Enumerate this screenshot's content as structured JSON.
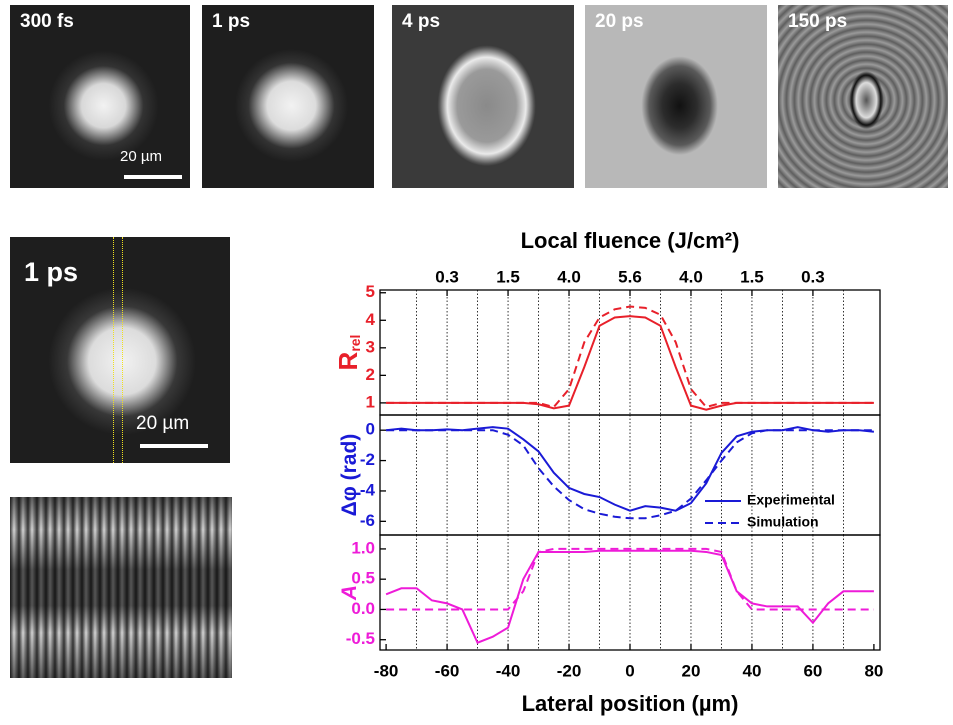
{
  "images": [
    {
      "label": "300 fs"
    },
    {
      "label": "1 ps"
    },
    {
      "label": "4 ps"
    },
    {
      "label": "20 ps"
    },
    {
      "label": "150 ps"
    }
  ],
  "scale_bar": "20 µm",
  "zoom_image": {
    "label": "1 ps",
    "scale_bar": "20 µm"
  },
  "chart_data": {
    "type": "line",
    "x2label": "Local fluence (J/cm²)",
    "x2ticks": [
      {
        "value": -60,
        "label": "0.3"
      },
      {
        "value": -40,
        "label": "1.5"
      },
      {
        "value": -20,
        "label": "4.0"
      },
      {
        "value": 0,
        "label": "5.6"
      },
      {
        "value": 20,
        "label": "4.0"
      },
      {
        "value": 40,
        "label": "1.5"
      },
      {
        "value": 60,
        "label": "0.3"
      }
    ],
    "xlabel": "Lateral position (µm)",
    "xlim": [
      -82,
      82
    ],
    "xticks": [
      -80,
      -60,
      -40,
      -20,
      0,
      20,
      40,
      60,
      80
    ],
    "xminorticks": [
      -70,
      -60,
      -50,
      -40,
      -30,
      -20,
      -10,
      0,
      10,
      20,
      30,
      40,
      50,
      60,
      70
    ],
    "x": [
      -80,
      -75,
      -70,
      -65,
      -60,
      -55,
      -50,
      -45,
      -40,
      -35,
      -30,
      -25,
      -20,
      -15,
      -10,
      -5,
      0,
      5,
      10,
      15,
      20,
      25,
      30,
      35,
      40,
      45,
      50,
      55,
      60,
      65,
      70,
      75,
      80
    ],
    "panels": [
      {
        "ylabel": "R",
        "ylabel_sub": "rel",
        "color": "#e8202a",
        "ylim": [
          0.56,
          5.1
        ],
        "yticks": [
          1,
          2,
          3,
          4,
          5
        ],
        "series": [
          {
            "style": "solid",
            "color": "#e8202a",
            "values": [
              1,
              1,
              1,
              1,
              1,
              1,
              1,
              1,
              1,
              1,
              0.95,
              0.8,
              0.9,
              2.3,
              3.8,
              4.1,
              4.15,
              4.1,
              3.8,
              2.3,
              0.9,
              0.75,
              0.9,
              1,
              1,
              1,
              1,
              1,
              1,
              1,
              1,
              1,
              1
            ]
          },
          {
            "style": "dashed",
            "color": "#e8202a",
            "values": [
              1,
              1,
              1,
              1,
              1,
              1,
              1,
              1,
              1,
              1,
              1.0,
              0.85,
              1.5,
              3.2,
              4.1,
              4.4,
              4.5,
              4.45,
              4.2,
              3.2,
              1.5,
              0.85,
              1.0,
              1,
              1,
              1,
              1,
              1,
              1,
              1,
              1,
              1,
              1
            ]
          }
        ]
      },
      {
        "ylabel": "Δφ (rad)",
        "color": "#1a1ad6",
        "ylim": [
          -6.9,
          1.0
        ],
        "yticks": [
          0,
          -2,
          -4,
          -6
        ],
        "legend": "lower right",
        "series": [
          {
            "name": "Experimental",
            "style": "solid",
            "color": "#1a1ad6",
            "values": [
              0,
              0.1,
              0,
              0,
              0.05,
              0,
              0.1,
              0.2,
              0.1,
              -0.6,
              -1.4,
              -2.8,
              -3.8,
              -4.2,
              -4.4,
              -4.9,
              -5.3,
              -5.0,
              -5.1,
              -5.3,
              -4.8,
              -3.5,
              -1.5,
              -0.4,
              -0.1,
              0,
              0,
              0.2,
              0,
              -0.1,
              0,
              0,
              -0.1
            ]
          },
          {
            "name": "Simulation",
            "style": "dashed",
            "color": "#1a1ad6",
            "values": [
              0,
              0,
              0,
              0,
              0,
              0,
              0,
              0,
              -0.3,
              -1.0,
              -2.5,
              -3.7,
              -4.6,
              -5.2,
              -5.5,
              -5.7,
              -5.8,
              -5.8,
              -5.6,
              -5.3,
              -4.5,
              -3.3,
              -2.0,
              -0.8,
              -0.2,
              0,
              0,
              0,
              0,
              0,
              0,
              0,
              0
            ]
          }
        ]
      },
      {
        "ylabel": "A",
        "color": "#ee1bd8",
        "ylim": [
          -0.67,
          1.23
        ],
        "yticks": [
          1.0,
          0.5,
          0.0,
          -0.5
        ],
        "ytick_labels": [
          "1.0",
          "0.5",
          "0.0",
          "-0.5"
        ],
        "series": [
          {
            "style": "solid",
            "color": "#ee1bd8",
            "values": [
              0.25,
              0.35,
              0.35,
              0.15,
              0.1,
              0.0,
              -0.55,
              -0.45,
              -0.3,
              0.5,
              0.95,
              0.95,
              0.95,
              0.95,
              0.97,
              0.97,
              0.97,
              0.97,
              0.97,
              0.97,
              0.97,
              0.95,
              0.9,
              0.3,
              0.1,
              0.05,
              0.05,
              0.05,
              -0.22,
              0.1,
              0.3,
              0.3,
              0.3
            ]
          },
          {
            "style": "dashed",
            "color": "#ee1bd8",
            "values": [
              0,
              0,
              0,
              0,
              0,
              0,
              0,
              0,
              0,
              0.3,
              0.95,
              1.0,
              1.0,
              1.0,
              1.0,
              1.0,
              1.0,
              1.0,
              1.0,
              1.0,
              1.0,
              1.0,
              0.95,
              0.3,
              0.0,
              0,
              0,
              0,
              0,
              0,
              0,
              0,
              0
            ]
          }
        ]
      }
    ]
  }
}
